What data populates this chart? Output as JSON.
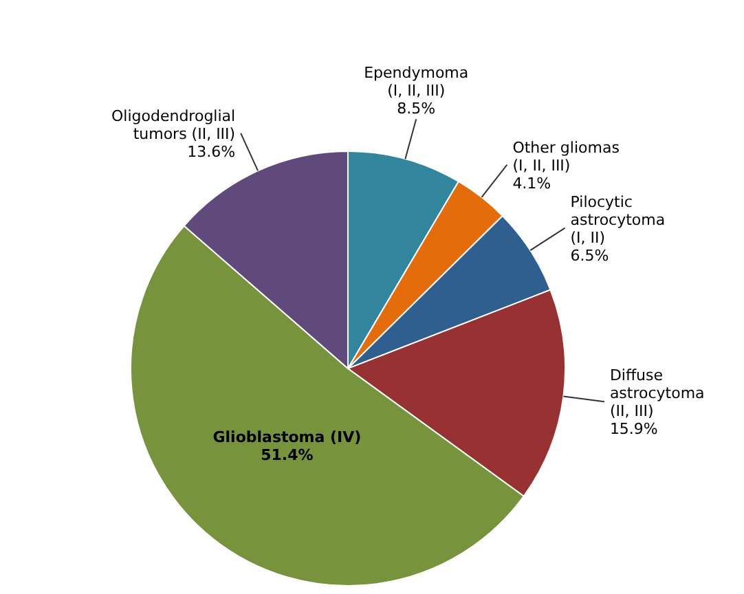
{
  "chart_data": {
    "type": "pie",
    "categories": [
      "Ependymoma (I, II, III)",
      "Other gliomas (I, II, III)",
      "Pilocytic astrocytoma (I, II)",
      "Diffuse astrocytoma (II, III)",
      "Glioblastoma (IV)",
      "Oligodendroglial tumors (II, III)"
    ],
    "values": [
      8.5,
      4.1,
      6.5,
      15.9,
      51.4,
      13.6
    ],
    "colors": [
      "#31859c",
      "#e46c0a",
      "#2e5f8f",
      "#983232",
      "#77933c",
      "#5f4a7b"
    ],
    "value_labels": [
      "8.5%",
      "4.1%",
      "6.5%",
      "15.9%",
      "51.4%",
      "13.6%"
    ],
    "legend": false
  }
}
